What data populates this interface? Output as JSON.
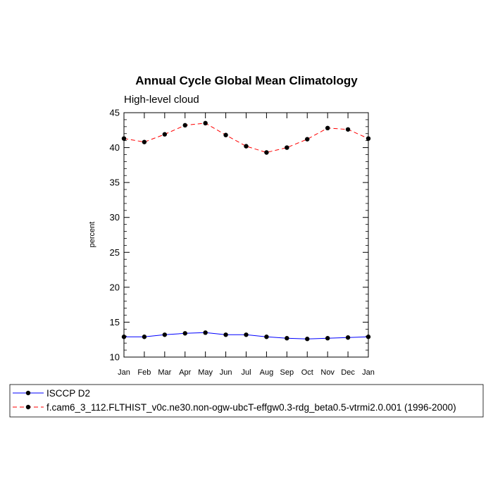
{
  "chart_data": {
    "type": "line",
    "title": "Annual Cycle Global Mean Climatology",
    "subtitle": "High-level cloud",
    "xlabel": "",
    "ylabel": "percent",
    "ylim": [
      10,
      45
    ],
    "yticks": [
      10,
      15,
      20,
      25,
      30,
      35,
      40,
      45
    ],
    "categories": [
      "Jan",
      "Feb",
      "Mar",
      "Apr",
      "May",
      "Jun",
      "Jul",
      "Aug",
      "Sep",
      "Oct",
      "Nov",
      "Dec",
      "Jan"
    ],
    "series": [
      {
        "name": "ISCCP D2",
        "color": "#0000ff",
        "line_style": "solid",
        "values": [
          12.9,
          12.9,
          13.2,
          13.4,
          13.5,
          13.2,
          13.2,
          12.9,
          12.7,
          12.6,
          12.7,
          12.8,
          12.9
        ]
      },
      {
        "name": "f.cam6_3_112.FLTHIST_v0c.ne30.non-ogw-ubcT-effgw0.3-rdg_beta0.5-vtrmi2.0.001 (1996-2000)",
        "color": "#ff0000",
        "line_style": "dashed",
        "values": [
          41.3,
          40.8,
          41.9,
          43.2,
          43.5,
          41.8,
          40.2,
          39.3,
          40.0,
          41.2,
          42.8,
          42.6,
          41.3
        ]
      }
    ],
    "legend_position": "bottom"
  }
}
